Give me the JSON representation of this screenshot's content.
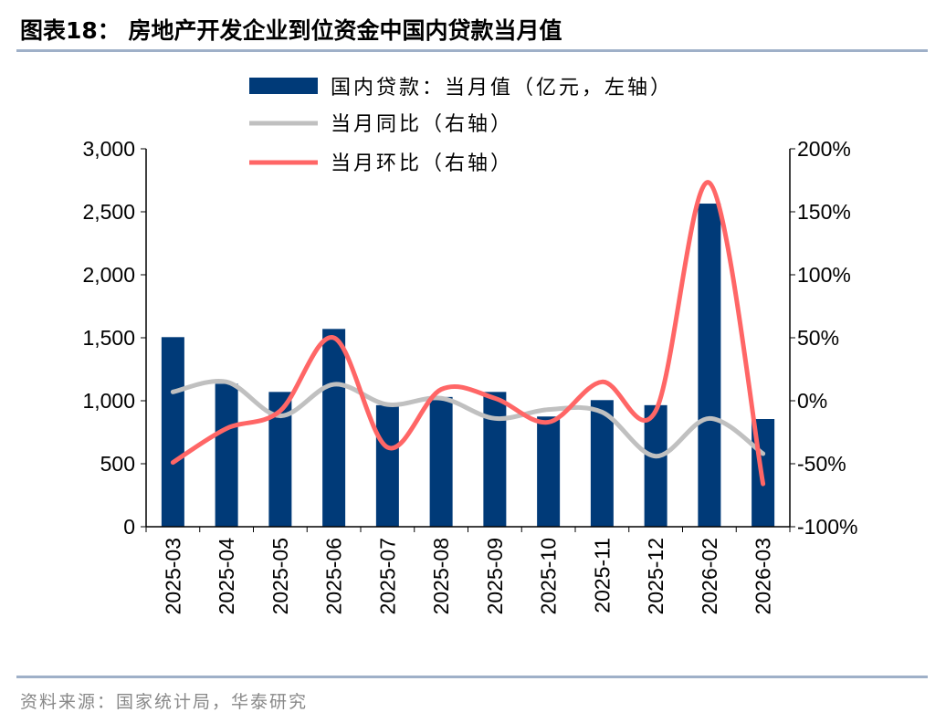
{
  "title": "图表18：  房地产开发企业到位资金中国内贷款当月值",
  "source": "资料来源：国家统计局，华泰研究",
  "colors": {
    "bar": "#003A78",
    "yoy": "#C0C0C0",
    "mom": "#FF6666"
  },
  "chart_data": {
    "type": "bar+line",
    "categories": [
      "2025-03",
      "2025-04",
      "2025-05",
      "2025-06",
      "2025-07",
      "2025-08",
      "2025-09",
      "2025-10",
      "2025-11",
      "2025-12",
      "2026-02",
      "2026-03"
    ],
    "series": [
      {
        "name": "国内贷款：当月值（亿元，左轴）",
        "type": "bar",
        "axis": "left",
        "values": [
          1505,
          1135,
          1070,
          1570,
          965,
          1030,
          1070,
          875,
          1005,
          965,
          2565,
          855
        ]
      },
      {
        "name": "当月同比（右轴）",
        "type": "line",
        "axis": "right",
        "values": [
          7,
          15,
          -12,
          13,
          -3,
          2,
          -14,
          -7,
          -9,
          -44,
          -14,
          -42
        ]
      },
      {
        "name": "当月环比（右轴）",
        "type": "line",
        "axis": "right",
        "values": [
          -49,
          -22,
          -8,
          50,
          -37,
          9,
          2,
          -17,
          15,
          -8,
          173,
          -66
        ]
      }
    ],
    "left_axis": {
      "ylim": [
        0,
        3000
      ],
      "ticks": [
        "0",
        "500",
        "1,000",
        "1,500",
        "2,000",
        "2,500",
        "3,000"
      ]
    },
    "right_axis": {
      "ylim": [
        -100,
        200
      ],
      "ticks": [
        "-100%",
        "-50%",
        "0%",
        "50%",
        "100%",
        "150%",
        "200%"
      ]
    },
    "legend": "top-center"
  }
}
